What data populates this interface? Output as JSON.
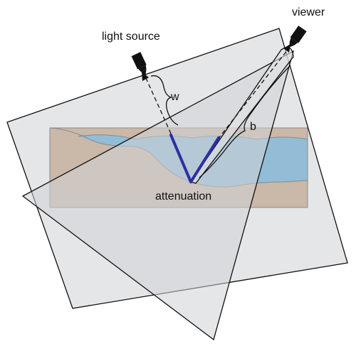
{
  "labels": {
    "light_source": "light source",
    "viewer": "viewer",
    "attenuation": "attenuation",
    "w": "w",
    "b": "b"
  },
  "icons": {
    "light_source": "camera-icon",
    "viewer": "camera-icon"
  },
  "colors": {
    "sand": "#c49a72",
    "water": "#4ba3d8",
    "plane_fill": "#dcdde0",
    "ray_highlight": "#2e2fa0",
    "outline": "#111111"
  }
}
